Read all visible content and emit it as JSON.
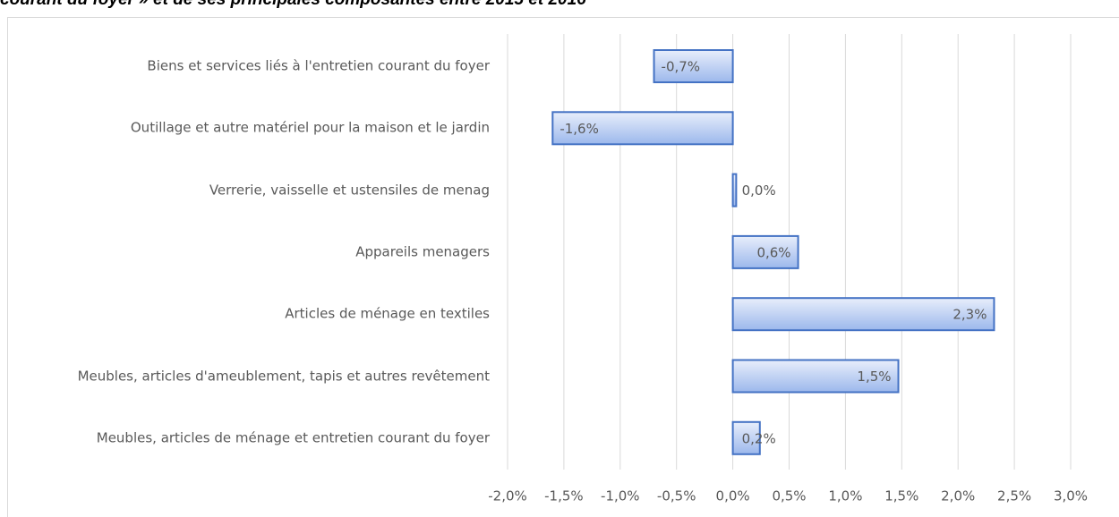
{
  "chart_data": {
    "type": "bar",
    "orientation": "horizontal",
    "title": "courant du foyer » et de ses principales composantes entre 2015 et 2016",
    "categories": [
      "Biens et services liés à l'entretien courant du foyer",
      "Outillage et autre matériel pour la maison et le jardin",
      "Verrerie, vaisselle et ustensiles de menag",
      "Appareils menagers",
      "Articles de ménage en textiles",
      "Meubles, articles d'ameublement, tapis et autres revêtement",
      "Meubles, articles de ménage et entretien courant du foyer"
    ],
    "values": [
      -0.7,
      -1.6,
      0.03,
      0.58,
      2.32,
      1.47,
      0.24
    ],
    "value_labels": [
      "-0,7%",
      "-1,6%",
      "0,0%",
      "0,6%",
      "2,3%",
      "1,5%",
      "0,2%"
    ],
    "color": "#4472c4",
    "xlim": [
      -2.0,
      3.0
    ],
    "xticks": [
      {
        "value": -2.0,
        "label": "-2,0%"
      },
      {
        "value": -1.5,
        "label": "-1,5%"
      },
      {
        "value": -1.0,
        "label": "-1,0%"
      },
      {
        "value": -0.5,
        "label": "-0,5%"
      },
      {
        "value": 0.0,
        "label": "0,0%"
      },
      {
        "value": 0.5,
        "label": "0,5%"
      },
      {
        "value": 1.0,
        "label": "1,0%"
      },
      {
        "value": 1.5,
        "label": "1,5%"
      },
      {
        "value": 2.0,
        "label": "2,0%"
      },
      {
        "value": 2.5,
        "label": "2,5%"
      },
      {
        "value": 3.0,
        "label": "3,0%"
      }
    ],
    "grid": true
  }
}
